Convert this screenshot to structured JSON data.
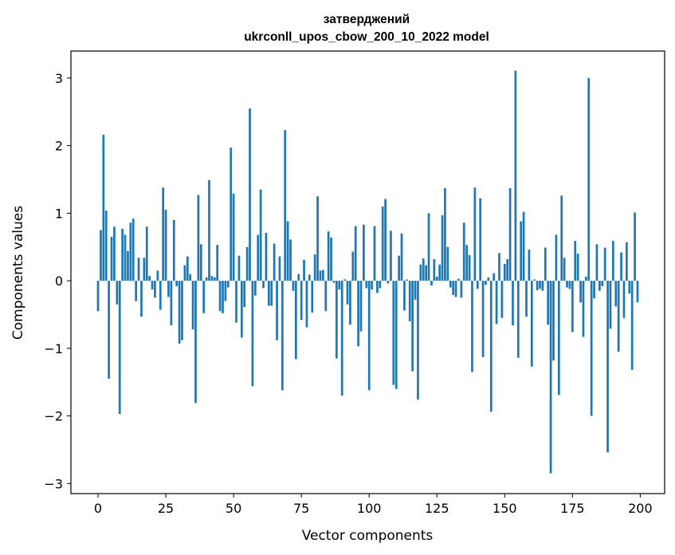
{
  "chart_data": {
    "type": "bar",
    "title": "затверджений",
    "subtitle": "ukrconll_upos_cbow_200_10_2022 model",
    "xlabel": "Vector components",
    "ylabel": "Components values",
    "xlim": [
      -10,
      209
    ],
    "ylim": [
      -3.15,
      3.4
    ],
    "xticks": [
      0,
      25,
      50,
      75,
      100,
      125,
      150,
      175,
      200
    ],
    "xtick_labels": [
      "0",
      "25",
      "50",
      "75",
      "100",
      "125",
      "150",
      "175",
      "200"
    ],
    "yticks": [
      -3,
      -2,
      -1,
      0,
      1,
      2,
      3
    ],
    "ytick_labels": [
      "−3",
      "−2",
      "−1",
      "0",
      "1",
      "2",
      "3"
    ],
    "bar_color": "#1f77b4",
    "grid": false,
    "legend": "none",
    "x": [
      0,
      1,
      2,
      3,
      4,
      5,
      6,
      7,
      8,
      9,
      10,
      11,
      12,
      13,
      14,
      15,
      16,
      17,
      18,
      19,
      20,
      21,
      22,
      23,
      24,
      25,
      26,
      27,
      28,
      29,
      30,
      31,
      32,
      33,
      34,
      35,
      36,
      37,
      38,
      39,
      40,
      41,
      42,
      43,
      44,
      45,
      46,
      47,
      48,
      49,
      50,
      51,
      52,
      53,
      54,
      55,
      56,
      57,
      58,
      59,
      60,
      61,
      62,
      63,
      64,
      65,
      66,
      67,
      68,
      69,
      70,
      71,
      72,
      73,
      74,
      75,
      76,
      77,
      78,
      79,
      80,
      81,
      82,
      83,
      84,
      85,
      86,
      87,
      88,
      89,
      90,
      91,
      92,
      93,
      94,
      95,
      96,
      97,
      98,
      99,
      100,
      101,
      102,
      103,
      104,
      105,
      106,
      107,
      108,
      109,
      110,
      111,
      112,
      113,
      114,
      115,
      116,
      117,
      118,
      119,
      120,
      121,
      122,
      123,
      124,
      125,
      126,
      127,
      128,
      129,
      130,
      131,
      132,
      133,
      134,
      135,
      136,
      137,
      138,
      139,
      140,
      141,
      142,
      143,
      144,
      145,
      146,
      147,
      148,
      149,
      150,
      151,
      152,
      153,
      154,
      155,
      156,
      157,
      158,
      159,
      160,
      161,
      162,
      163,
      164,
      165,
      166,
      167,
      168,
      169,
      170,
      171,
      172,
      173,
      174,
      175,
      176,
      177,
      178,
      179,
      180,
      181,
      182,
      183,
      184,
      185,
      186,
      187,
      188,
      189,
      190,
      191,
      192,
      193,
      194,
      195,
      196,
      197,
      198,
      199
    ],
    "values": [
      -0.45,
      0.75,
      2.16,
      1.04,
      -1.45,
      0.65,
      0.8,
      -0.35,
      -1.97,
      0.77,
      0.68,
      0.44,
      0.86,
      0.92,
      -0.3,
      0.34,
      -0.53,
      0.34,
      0.8,
      0.07,
      -0.13,
      -0.25,
      0.15,
      -0.43,
      1.38,
      1.05,
      -0.24,
      -0.66,
      0.9,
      -0.08,
      -0.93,
      -0.88,
      0.23,
      0.36,
      0.1,
      -0.72,
      -1.81,
      1.27,
      0.54,
      -0.48,
      0.05,
      1.49,
      0.07,
      0.05,
      0.53,
      -0.45,
      -0.48,
      -0.3,
      -0.1,
      1.97,
      1.29,
      -0.62,
      0.37,
      -0.84,
      -0.39,
      0.5,
      2.55,
      -1.56,
      -0.22,
      0.68,
      1.35,
      -0.11,
      0.71,
      -0.37,
      -0.37,
      0.55,
      -0.88,
      0.36,
      -1.62,
      2.23,
      0.88,
      0.61,
      -0.15,
      -1.16,
      0.1,
      -0.58,
      0.31,
      -0.69,
      0.09,
      -0.47,
      0.39,
      1.25,
      0.15,
      0.16,
      -0.45,
      0.73,
      0.64,
      -0.03,
      -1.15,
      -0.13,
      -1.7,
      0.02,
      -0.35,
      -0.65,
      0.43,
      0.81,
      -0.97,
      -0.75,
      0.83,
      -0.11,
      -1.62,
      -0.13,
      0.81,
      -0.18,
      -0.11,
      1.1,
      1.21,
      -0.04,
      0.74,
      -1.54,
      -1.6,
      0.37,
      0.7,
      -0.44,
      0.02,
      -0.6,
      -1.34,
      -0.28,
      -1.76,
      0.24,
      0.33,
      0.23,
      1.0,
      -0.07,
      0.32,
      0.06,
      0.24,
      0.97,
      1.37,
      0.5,
      -0.1,
      -0.21,
      -0.24,
      0.03,
      -0.25,
      0.86,
      0.53,
      0.38,
      -1.35,
      1.38,
      -0.12,
      1.22,
      -1.13,
      -0.06,
      0.05,
      -1.94,
      0.11,
      -0.64,
      0.41,
      -0.55,
      0.25,
      0.32,
      1.37,
      -0.66,
      3.11,
      -1.14,
      0.88,
      1.02,
      -0.53,
      0.46,
      -1.27,
      0.02,
      -0.14,
      -0.12,
      -0.15,
      0.49,
      -0.65,
      -2.85,
      -1.18,
      0.68,
      -1.69,
      1.26,
      0.34,
      -0.1,
      -0.12,
      -0.76,
      0.59,
      0.4,
      -0.32,
      -0.83,
      0.06,
      3.0,
      -2.0,
      -0.26,
      0.54,
      -0.15,
      -0.08,
      0.49,
      -2.54,
      -0.71,
      0.59,
      -0.38,
      -1.05,
      0.42,
      -0.55,
      0.57,
      -0.19,
      -1.32,
      1.01,
      -0.32
    ]
  }
}
